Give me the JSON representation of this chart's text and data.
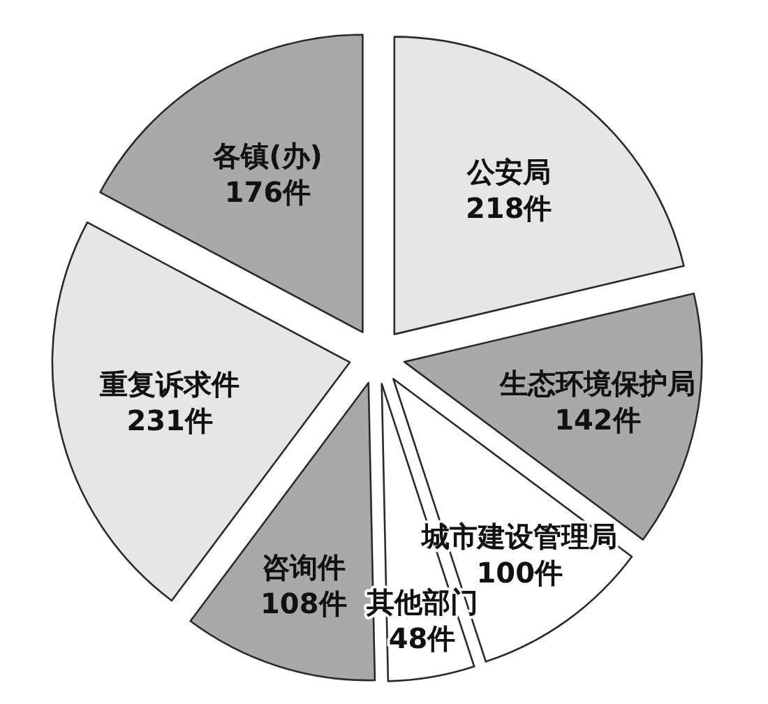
{
  "chart_data": {
    "type": "pie",
    "categories": [
      "公安局",
      "生态环境保护局",
      "城市建设管理局",
      "其他部门",
      "咨询件",
      "重复诉求件",
      "各镇(办)"
    ],
    "values": [
      218,
      142,
      100,
      48,
      108,
      231,
      176
    ],
    "colors": [
      "#e6e6e6",
      "#a9a9a9",
      "#ffffff",
      "#ffffff",
      "#a9a9a9",
      "#e6e6e6",
      "#a9a9a9"
    ],
    "value_labels": [
      "218件",
      "142件",
      "100件",
      "48件",
      "108件",
      "231件",
      "176件"
    ]
  }
}
